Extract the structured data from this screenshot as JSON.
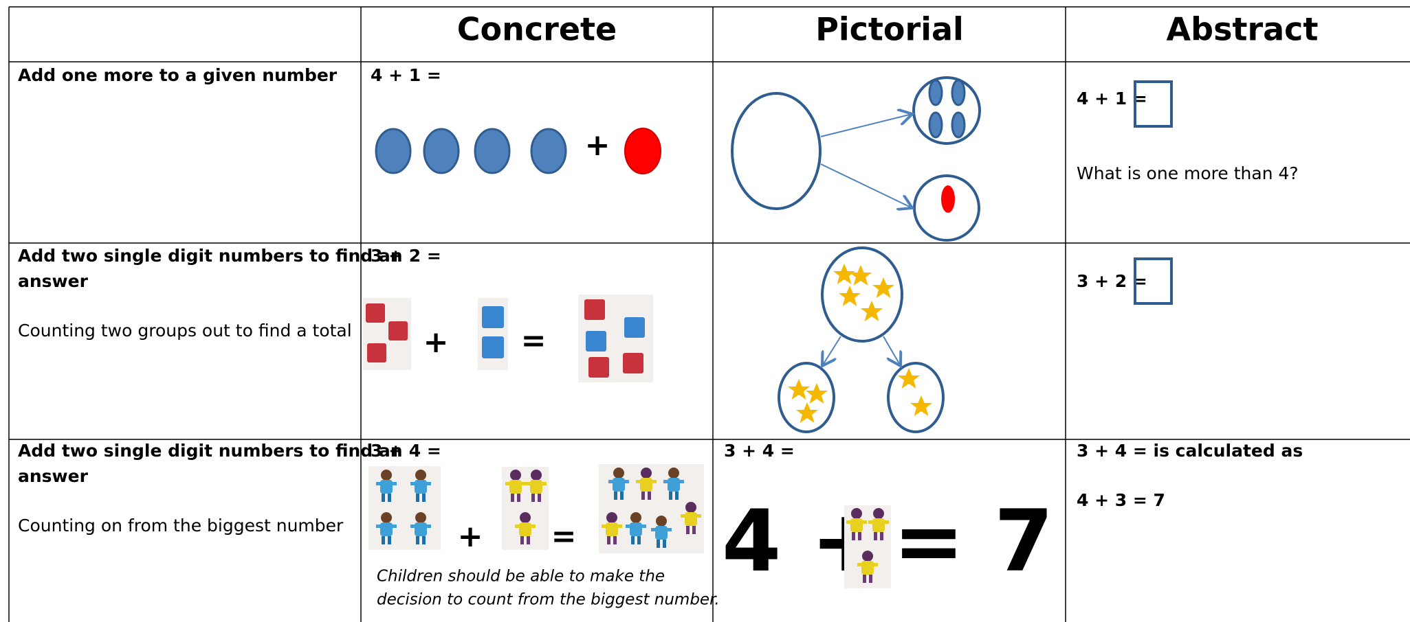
{
  "header": {
    "columns": [
      "Concrete",
      "Pictorial",
      "Abstract"
    ]
  },
  "rows": [
    {
      "label_lines": [
        "Add one more to a given number"
      ],
      "concrete": {
        "equation": "4 + 1 =",
        "operators": [
          "+"
        ]
      },
      "abstract": {
        "lines": [
          "4 + 1 =",
          "What is one more than 4?"
        ]
      }
    },
    {
      "label_lines": [
        "Add two single digit numbers to find an",
        "answer"
      ],
      "description": "Counting two groups out to find a total",
      "concrete": {
        "equation": "3 + 2 =",
        "operators": [
          "+",
          "="
        ]
      },
      "abstract": {
        "lines": [
          "3 + 2 ="
        ]
      }
    },
    {
      "label_lines": [
        "Add two single digit numbers to find an",
        "answer"
      ],
      "description": "Counting on from the biggest number",
      "concrete": {
        "equation": "3 +  4 =",
        "operators": [
          "+",
          "="
        ],
        "note_lines": [
          "Children should be able to make the",
          "decision to count from the biggest number."
        ]
      },
      "pictorial": {
        "equation": "3 +  4 =",
        "big_left": "4 +",
        "big_right": "= 7"
      },
      "abstract": {
        "lines": [
          "3 +  4 = is calculated as",
          "4 + 3 = 7"
        ]
      }
    }
  ]
}
